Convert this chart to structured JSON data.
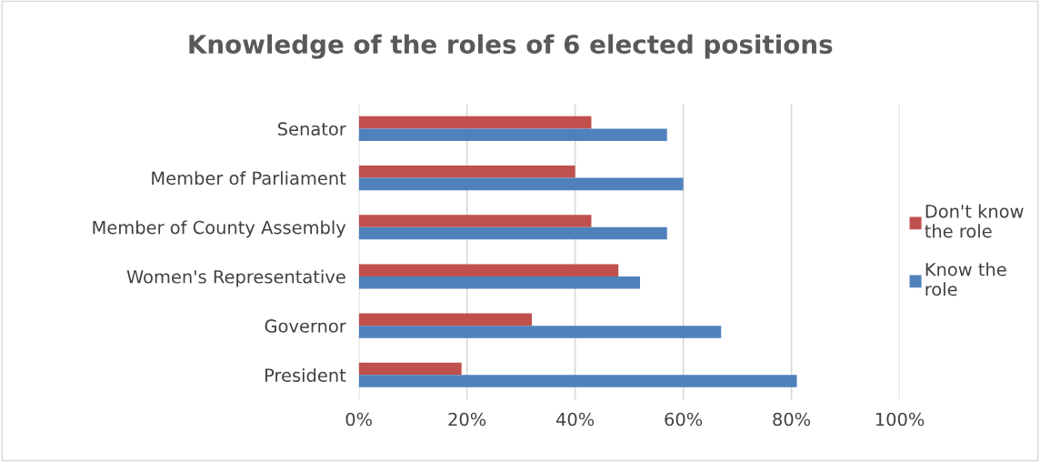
{
  "chart_data": {
    "type": "bar",
    "orientation": "horizontal",
    "title": "Knowledge of the roles of 6 elected positions",
    "categories": [
      "Senator",
      "Member of Parliament",
      "Member of County Assembly",
      "Women's Representative",
      "Governor",
      "President"
    ],
    "series": [
      {
        "name": "Don't know the role",
        "color": "#c0504d",
        "values": [
          43,
          40,
          43,
          48,
          32,
          19
        ]
      },
      {
        "name": "Know the role",
        "color": "#4f81bd",
        "values": [
          57,
          60,
          57,
          52,
          67,
          81
        ]
      }
    ],
    "xlim": [
      0,
      100
    ],
    "xticks": [
      {
        "value": 0,
        "label": "0%"
      },
      {
        "value": 20,
        "label": "20%"
      },
      {
        "value": 40,
        "label": "40%"
      },
      {
        "value": 60,
        "label": "60%"
      },
      {
        "value": 80,
        "label": "80%"
      },
      {
        "value": 100,
        "label": "100%"
      }
    ],
    "grid": "x",
    "legend": "right"
  }
}
